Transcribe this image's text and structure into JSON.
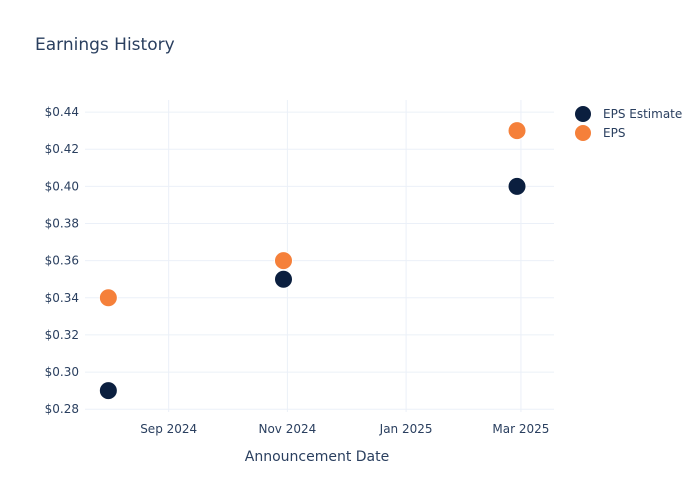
{
  "chart_data": {
    "type": "scatter",
    "title": "Earnings History",
    "xlabel": "Announcement Date",
    "ylabel": "",
    "x_ticks": [
      {
        "date": "2024-09-01",
        "label": "Sep 2024"
      },
      {
        "date": "2024-11-01",
        "label": "Nov 2024"
      },
      {
        "date": "2025-01-01",
        "label": "Jan 2025"
      },
      {
        "date": "2025-03-01",
        "label": "Mar 2025"
      }
    ],
    "xlim": [
      "2024-07-20",
      "2025-03-18"
    ],
    "y_ticks": [
      0.28,
      0.3,
      0.32,
      0.34,
      0.36,
      0.38,
      0.4,
      0.42,
      0.44
    ],
    "y_tick_labels": [
      "$0.28",
      "$0.30",
      "$0.32",
      "$0.34",
      "$0.36",
      "$0.38",
      "$0.40",
      "$0.42",
      "$0.44"
    ],
    "ylim": [
      0.2785,
      0.4465
    ],
    "grid": true,
    "legend_position": "top-right",
    "series": [
      {
        "name": "EPS Estimate",
        "color": "#0b1f3f",
        "points": [
          {
            "x": "2024-08-01",
            "y": 0.29
          },
          {
            "x": "2024-10-30",
            "y": 0.35
          },
          {
            "x": "2025-02-27",
            "y": 0.4
          }
        ]
      },
      {
        "name": "EPS",
        "color": "#f5803a",
        "points": [
          {
            "x": "2024-08-01",
            "y": 0.34
          },
          {
            "x": "2024-10-30",
            "y": 0.36
          },
          {
            "x": "2025-02-27",
            "y": 0.43
          }
        ]
      }
    ]
  },
  "colors": {
    "text": "#2a3f5f",
    "grid": "#ebf0f8",
    "background": "#ffffff"
  }
}
